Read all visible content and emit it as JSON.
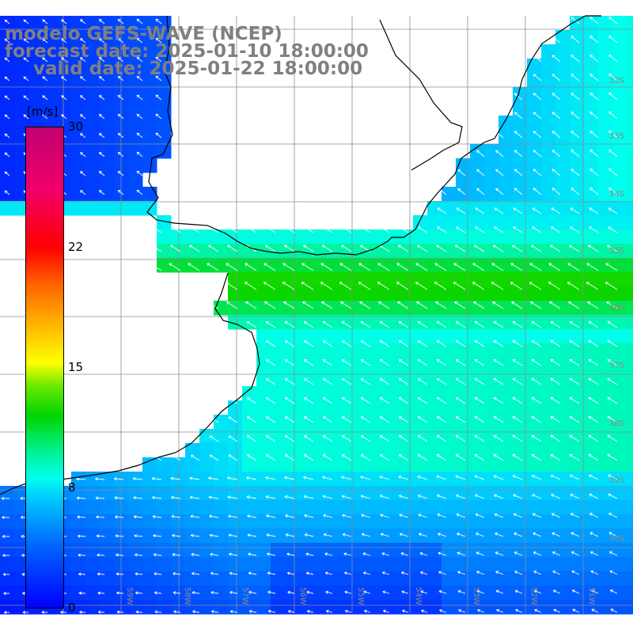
{
  "title": {
    "model": "modelo GEFS-WAVE (NCEP)",
    "forecast": "forecast date: 2025-01-10 18:00:00",
    "valid": "valid date: 2025-01-22 18:00:00"
  },
  "colorbar": {
    "unit": "[m/s]",
    "min": 0,
    "max": 30,
    "ticks": [
      "30",
      "22",
      "15",
      "8",
      "0"
    ]
  },
  "axes": {
    "lat_labels": [
      "32S",
      "33S",
      "34S",
      "35S",
      "36S",
      "37S",
      "38S",
      "39S",
      "40S"
    ],
    "lon_labels": [
      "59W",
      "58W",
      "57W",
      "56W",
      "55W",
      "54W",
      "53W",
      "52W",
      "51W"
    ]
  },
  "colors": {
    "land": "#ffffff",
    "coastline": "#000000",
    "grid": "#8c8c8c",
    "arrow": "#ffffff",
    "title_text": "#808080"
  },
  "field": {
    "description_kind": "wind speed and direction vectors over ocean",
    "speed_scale": [
      {
        "value": 0,
        "color": "#0000ff"
      },
      {
        "value": 4,
        "color": "#0066ff"
      },
      {
        "value": 7,
        "color": "#00ccff"
      },
      {
        "value": 8,
        "color": "#00ffee"
      },
      {
        "value": 10,
        "color": "#00f08a"
      },
      {
        "value": 12,
        "color": "#00d400"
      },
      {
        "value": 14,
        "color": "#66e800"
      },
      {
        "value": 15,
        "color": "#ffff00"
      },
      {
        "value": 18,
        "color": "#ffaa00"
      },
      {
        "value": 20,
        "color": "#ff6600"
      },
      {
        "value": 22,
        "color": "#ff0000"
      },
      {
        "value": 26,
        "color": "#f0006a"
      },
      {
        "value": 30,
        "color": "#c00070"
      }
    ]
  }
}
